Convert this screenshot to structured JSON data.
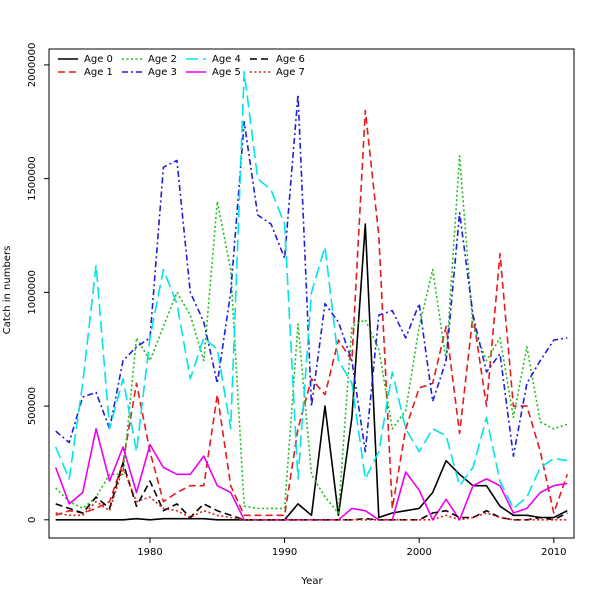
{
  "chart_data": {
    "type": "line",
    "title": "",
    "xlabel": "Year",
    "ylabel": "Catch in numbers",
    "xlim": [
      1972.5,
      2011.5
    ],
    "ylim": [
      -80000,
      2070000
    ],
    "xticks": [
      1980,
      1990,
      2000,
      2010
    ],
    "yticks": [
      0,
      500000,
      1000000,
      1500000,
      2000000
    ],
    "xtick_labels": [
      "1980",
      "1990",
      "2000",
      "2010"
    ],
    "ytick_labels": [
      "0",
      "500000",
      "1000000",
      "1500000",
      "2000000"
    ],
    "grid": false,
    "legend_position": "top-left",
    "x": [
      1973,
      1974,
      1975,
      1976,
      1977,
      1978,
      1979,
      1980,
      1981,
      1982,
      1983,
      1984,
      1985,
      1986,
      1987,
      1988,
      1989,
      1990,
      1991,
      1992,
      1993,
      1994,
      1995,
      1996,
      1997,
      1998,
      1999,
      2000,
      2001,
      2002,
      2003,
      2004,
      2005,
      2006,
      2007,
      2008,
      2009,
      2010,
      2011
    ],
    "series": [
      {
        "name": "Age 0",
        "color": "#000000",
        "dash": "solid",
        "values": [
          0,
          0,
          0,
          0,
          0,
          0,
          5000,
          0,
          5000,
          5000,
          5000,
          5000,
          0,
          0,
          0,
          0,
          0,
          0,
          70000,
          20000,
          500000,
          20000,
          450000,
          1300000,
          10000,
          30000,
          40000,
          50000,
          120000,
          260000,
          200000,
          150000,
          150000,
          60000,
          20000,
          20000,
          10000,
          10000,
          40000
        ]
      },
      {
        "name": "Age 1",
        "color": "#e41a1c",
        "dash": "dashed",
        "values": [
          20000,
          40000,
          30000,
          50000,
          80000,
          250000,
          600000,
          300000,
          80000,
          120000,
          150000,
          150000,
          550000,
          150000,
          20000,
          20000,
          20000,
          20000,
          400000,
          620000,
          550000,
          790000,
          700000,
          1800000,
          1250000,
          50000,
          400000,
          580000,
          600000,
          850000,
          380000,
          900000,
          500000,
          1170000,
          500000,
          500000,
          300000,
          30000,
          200000
        ]
      },
      {
        "name": "Age 2",
        "color": "#1fbf1f",
        "dash": "dotted",
        "values": [
          140000,
          80000,
          50000,
          100000,
          200000,
          200000,
          800000,
          700000,
          850000,
          1000000,
          900000,
          700000,
          1400000,
          1100000,
          60000,
          50000,
          50000,
          50000,
          860000,
          200000,
          100000,
          30000,
          850000,
          880000,
          750000,
          400000,
          480000,
          850000,
          1100000,
          700000,
          1600000,
          850000,
          700000,
          800000,
          450000,
          760000,
          430000,
          400000,
          420000
        ]
      },
      {
        "name": "Age 3",
        "color": "#1f1fd9",
        "dash": "dashdot",
        "values": [
          390000,
          340000,
          540000,
          560000,
          400000,
          700000,
          760000,
          800000,
          1550000,
          1580000,
          1000000,
          870000,
          600000,
          1000000,
          1750000,
          1340000,
          1300000,
          1150000,
          1870000,
          500000,
          950000,
          870000,
          700000,
          300000,
          900000,
          920000,
          800000,
          950000,
          520000,
          700000,
          1350000,
          900000,
          650000,
          730000,
          280000,
          600000,
          700000,
          790000,
          800000
        ]
      },
      {
        "name": "Age 4",
        "color": "#00e5e5",
        "dash": "longdash",
        "values": [
          320000,
          180000,
          600000,
          1120000,
          400000,
          620000,
          300000,
          800000,
          1100000,
          950000,
          620000,
          800000,
          750000,
          400000,
          1970000,
          1500000,
          1450000,
          1300000,
          180000,
          1000000,
          1200000,
          700000,
          600000,
          180000,
          300000,
          650000,
          400000,
          300000,
          400000,
          370000,
          150000,
          230000,
          450000,
          170000,
          50000,
          100000,
          230000,
          270000,
          260000
        ]
      },
      {
        "name": "Age 5",
        "color": "#ee00ee",
        "dash": "solid",
        "values": [
          230000,
          70000,
          120000,
          400000,
          170000,
          320000,
          120000,
          330000,
          230000,
          200000,
          200000,
          280000,
          150000,
          120000,
          0,
          0,
          0,
          0,
          0,
          0,
          0,
          0,
          50000,
          40000,
          0,
          0,
          210000,
          130000,
          0,
          90000,
          0,
          150000,
          180000,
          150000,
          30000,
          50000,
          120000,
          150000,
          160000
        ]
      },
      {
        "name": "Age 6",
        "color": "#000000",
        "dash": "dashed",
        "values": [
          70000,
          50000,
          30000,
          100000,
          50000,
          250000,
          60000,
          170000,
          40000,
          70000,
          10000,
          70000,
          40000,
          20000,
          0,
          0,
          0,
          0,
          0,
          0,
          0,
          0,
          0,
          5000,
          0,
          0,
          0,
          0,
          30000,
          40000,
          10000,
          10000,
          40000,
          10000,
          0,
          0,
          10000,
          0,
          30000
        ]
      },
      {
        "name": "Age 7",
        "color": "#e41a1c",
        "dash": "dotted",
        "values": [
          30000,
          20000,
          20000,
          80000,
          40000,
          230000,
          80000,
          100000,
          50000,
          40000,
          10000,
          40000,
          20000,
          10000,
          0,
          0,
          0,
          0,
          0,
          0,
          0,
          0,
          0,
          0,
          0,
          0,
          0,
          0,
          0,
          20000,
          0,
          10000,
          30000,
          10000,
          0,
          0,
          0,
          0,
          0
        ]
      }
    ]
  }
}
